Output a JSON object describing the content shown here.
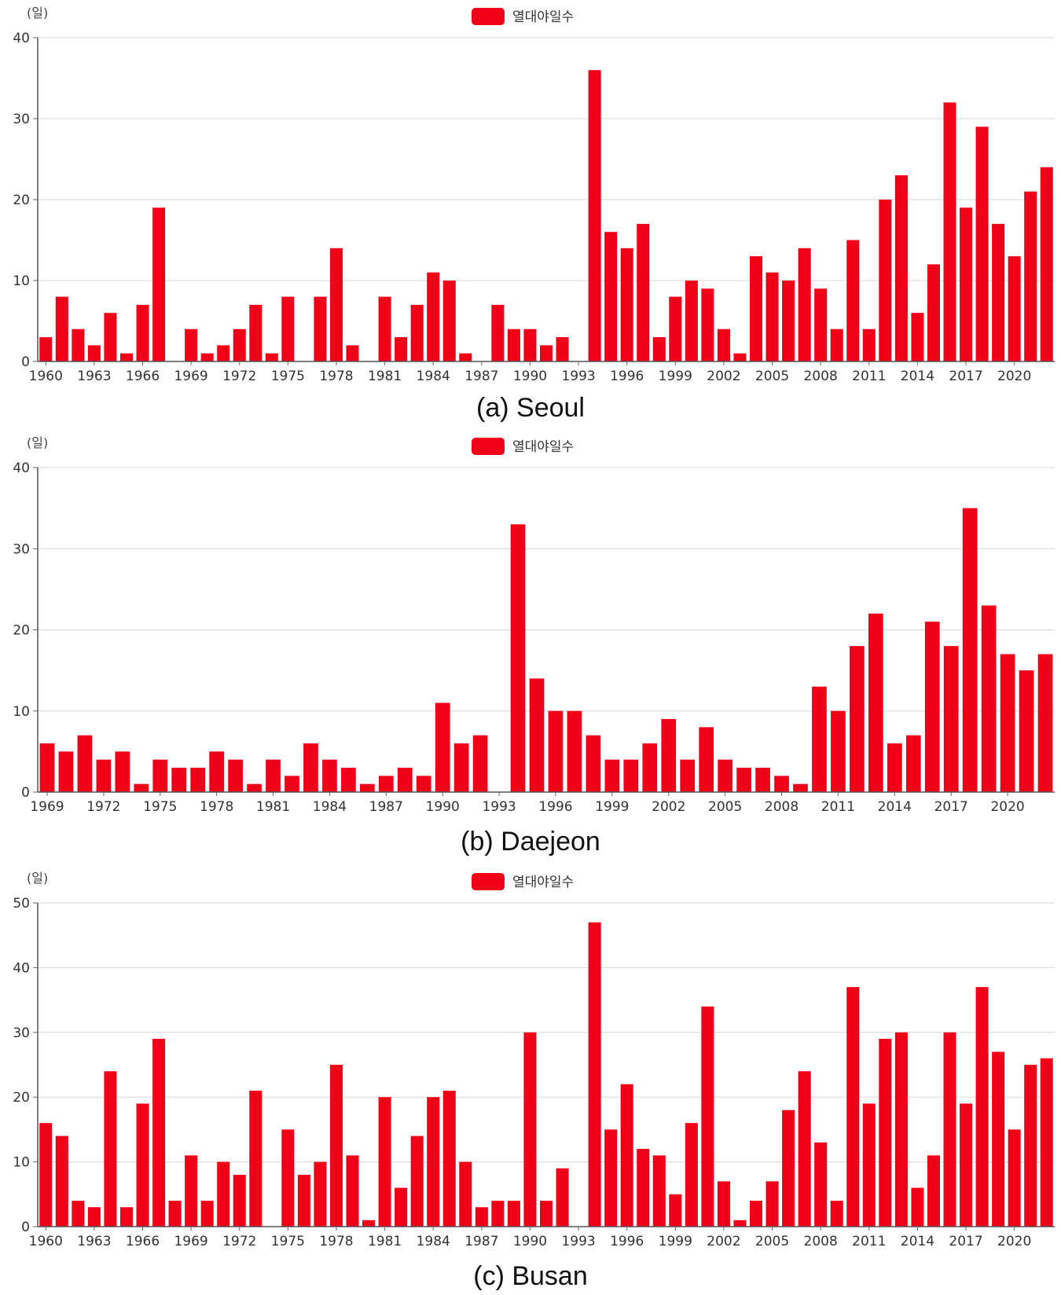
{
  "chart_data": [
    {
      "type": "bar",
      "caption": "(a) Seoul",
      "ylabel": "(일)",
      "legend": "열대야일수",
      "legend_position": "top-center",
      "grid": true,
      "ylim": [
        0,
        40
      ],
      "yticks": [
        0,
        10,
        20,
        30,
        40
      ],
      "color": "#f00018",
      "x_start": 1960,
      "xtick_labels": [
        "1960",
        "1963",
        "1966",
        "1969",
        "1972",
        "1975",
        "1978",
        "1981",
        "1984",
        "1987",
        "1990",
        "1993",
        "1996",
        "1999",
        "2002",
        "2005",
        "2008",
        "2011",
        "2014",
        "2017",
        "2020"
      ],
      "categories": [
        1960,
        1961,
        1962,
        1963,
        1964,
        1965,
        1966,
        1967,
        1968,
        1969,
        1970,
        1971,
        1972,
        1973,
        1974,
        1975,
        1976,
        1977,
        1978,
        1979,
        1980,
        1981,
        1982,
        1983,
        1984,
        1985,
        1986,
        1987,
        1988,
        1989,
        1990,
        1991,
        1992,
        1993,
        1994,
        1995,
        1996,
        1997,
        1998,
        1999,
        2000,
        2001,
        2002,
        2003,
        2004,
        2005,
        2006,
        2007,
        2008,
        2009,
        2010,
        2011,
        2012,
        2013,
        2014,
        2015,
        2016,
        2017,
        2018,
        2019,
        2020,
        2021,
        2022
      ],
      "values": [
        3,
        8,
        4,
        2,
        6,
        1,
        7,
        19,
        0,
        4,
        1,
        2,
        4,
        7,
        1,
        8,
        0,
        8,
        14,
        2,
        0,
        8,
        3,
        7,
        11,
        10,
        1,
        0,
        7,
        4,
        4,
        2,
        3,
        0,
        36,
        16,
        14,
        17,
        3,
        8,
        10,
        9,
        4,
        1,
        13,
        11,
        10,
        14,
        9,
        4,
        15,
        4,
        20,
        23,
        6,
        12,
        32,
        19,
        29,
        17,
        13,
        21,
        24
      ]
    },
    {
      "type": "bar",
      "caption": "(b) Daejeon",
      "ylabel": "(일)",
      "legend": "열대야일수",
      "legend_position": "top-center",
      "grid": true,
      "ylim": [
        0,
        40
      ],
      "yticks": [
        0,
        10,
        20,
        30,
        40
      ],
      "color": "#f00018",
      "x_start": 1969,
      "xtick_labels": [
        "1969",
        "1972",
        "1975",
        "1978",
        "1981",
        "1984",
        "1987",
        "1990",
        "1993",
        "1996",
        "1999",
        "2002",
        "2005",
        "2008",
        "2011",
        "2014",
        "2017",
        "2020"
      ],
      "categories": [
        1969,
        1970,
        1971,
        1972,
        1973,
        1974,
        1975,
        1976,
        1977,
        1978,
        1979,
        1980,
        1981,
        1982,
        1983,
        1984,
        1985,
        1986,
        1987,
        1988,
        1989,
        1990,
        1991,
        1992,
        1993,
        1994,
        1995,
        1996,
        1997,
        1998,
        1999,
        2000,
        2001,
        2002,
        2003,
        2004,
        2005,
        2006,
        2007,
        2008,
        2009,
        2010,
        2011,
        2012,
        2013,
        2014,
        2015,
        2016,
        2017,
        2018,
        2019,
        2020,
        2021,
        2022
      ],
      "values": [
        6,
        5,
        7,
        4,
        5,
        1,
        4,
        3,
        3,
        5,
        4,
        1,
        4,
        2,
        6,
        4,
        3,
        1,
        2,
        3,
        2,
        11,
        6,
        7,
        0,
        33,
        14,
        10,
        10,
        7,
        4,
        4,
        6,
        9,
        4,
        8,
        4,
        3,
        3,
        2,
        1,
        13,
        10,
        18,
        22,
        6,
        7,
        21,
        18,
        35,
        23,
        17,
        15,
        17
      ]
    },
    {
      "type": "bar",
      "caption": "(c) Busan",
      "ylabel": "(일)",
      "legend": "열대야일수",
      "legend_position": "top-center",
      "grid": true,
      "ylim": [
        0,
        50
      ],
      "yticks": [
        0,
        10,
        20,
        30,
        40,
        50
      ],
      "color": "#f00018",
      "x_start": 1960,
      "xtick_labels": [
        "1960",
        "1963",
        "1966",
        "1969",
        "1972",
        "1975",
        "1978",
        "1981",
        "1984",
        "1987",
        "1990",
        "1993",
        "1996",
        "1999",
        "2002",
        "2005",
        "2008",
        "2011",
        "2014",
        "2017",
        "2020"
      ],
      "categories": [
        1960,
        1961,
        1962,
        1963,
        1964,
        1965,
        1966,
        1967,
        1968,
        1969,
        1970,
        1971,
        1972,
        1973,
        1974,
        1975,
        1976,
        1977,
        1978,
        1979,
        1980,
        1981,
        1982,
        1983,
        1984,
        1985,
        1986,
        1987,
        1988,
        1989,
        1990,
        1991,
        1992,
        1993,
        1994,
        1995,
        1996,
        1997,
        1998,
        1999,
        2000,
        2001,
        2002,
        2003,
        2004,
        2005,
        2006,
        2007,
        2008,
        2009,
        2010,
        2011,
        2012,
        2013,
        2014,
        2015,
        2016,
        2017,
        2018,
        2019,
        2020,
        2021,
        2022
      ],
      "values": [
        16,
        14,
        4,
        3,
        24,
        3,
        19,
        29,
        4,
        11,
        4,
        10,
        8,
        21,
        0,
        15,
        8,
        10,
        25,
        11,
        1,
        20,
        6,
        14,
        20,
        21,
        10,
        3,
        4,
        4,
        30,
        4,
        9,
        0,
        47,
        15,
        22,
        12,
        11,
        5,
        16,
        34,
        7,
        1,
        4,
        7,
        18,
        24,
        13,
        4,
        37,
        19,
        29,
        30,
        6,
        11,
        30,
        19,
        37,
        27,
        15,
        25,
        26
      ]
    }
  ]
}
